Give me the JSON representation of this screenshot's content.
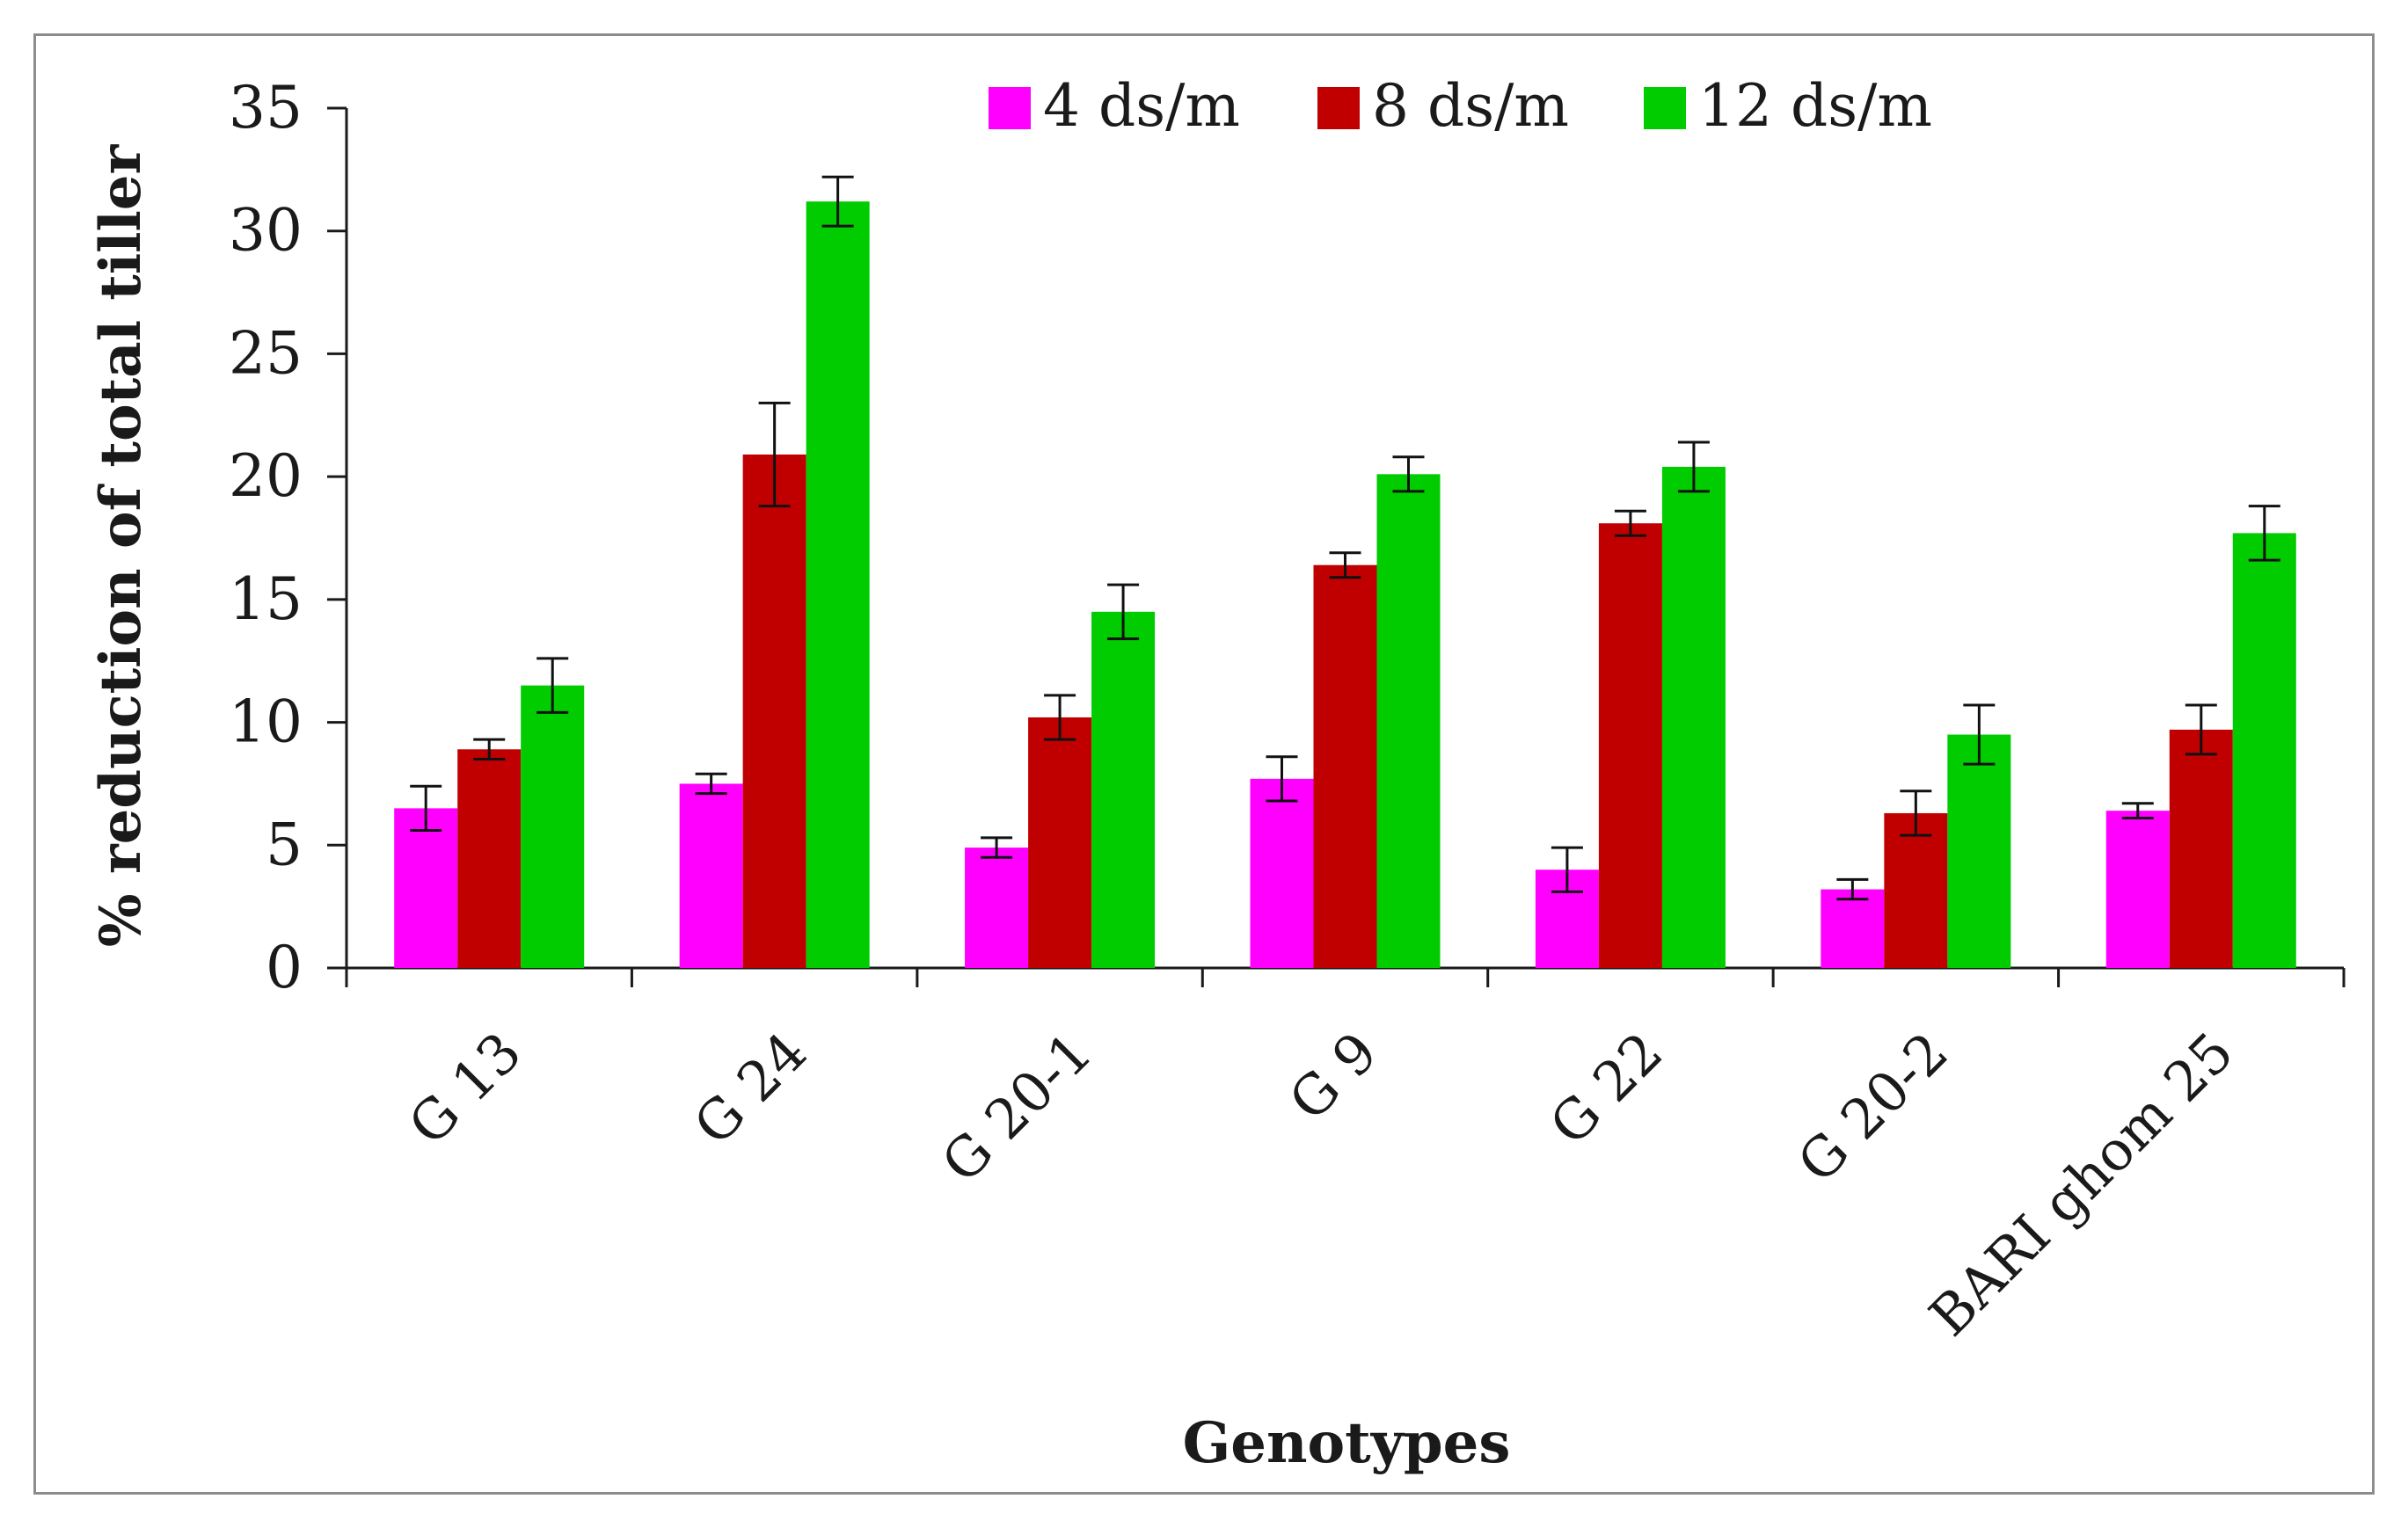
{
  "chart_data": {
    "type": "bar",
    "title": "",
    "xlabel": "Genotypes",
    "ylabel": "% reduction of total tiller",
    "ylim": [
      0,
      35
    ],
    "yticks": [
      0,
      5,
      10,
      15,
      20,
      25,
      30,
      35
    ],
    "grid": false,
    "legend_position": "top-right",
    "categories": [
      "G 13",
      "G 24",
      "G 20-1",
      "G 9",
      "G 22",
      "G 20-2",
      "BARI ghom 25"
    ],
    "series": [
      {
        "name": "4 ds/m",
        "color": "#ff00ff",
        "values": [
          6.5,
          7.5,
          4.9,
          7.7,
          4.0,
          3.2,
          6.4
        ],
        "errors": [
          0.9,
          0.4,
          0.4,
          0.9,
          0.9,
          0.4,
          0.3
        ]
      },
      {
        "name": "8 ds/m",
        "color": "#c00000",
        "values": [
          8.9,
          20.9,
          10.2,
          16.4,
          18.1,
          6.3,
          9.7
        ],
        "errors": [
          0.4,
          2.1,
          0.9,
          0.5,
          0.5,
          0.9,
          1.0
        ]
      },
      {
        "name": "12 ds/m",
        "color": "#00cc00",
        "values": [
          11.5,
          31.2,
          14.5,
          20.1,
          20.4,
          9.5,
          17.7
        ],
        "errors": [
          1.1,
          1.0,
          1.1,
          0.7,
          1.0,
          1.2,
          1.1
        ]
      }
    ]
  }
}
